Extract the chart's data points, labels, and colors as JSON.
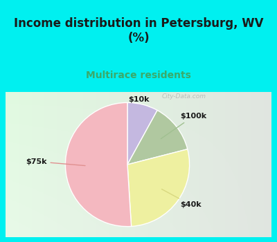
{
  "title": "Income distribution in Petersburg, WV\n(%)",
  "subtitle": "Multirace residents",
  "labels": [
    "$10k",
    "$100k",
    "$40k",
    "$75k"
  ],
  "sizes": [
    8,
    13,
    28,
    51
  ],
  "colors": [
    "#c4b8e0",
    "#b0c8a0",
    "#eef0a0",
    "#f4b8c0"
  ],
  "bg_color": "#00f0f0",
  "chart_bg_left": "#e8f5ee",
  "chart_bg_right": "#d0eae0",
  "title_color": "#1a1a1a",
  "subtitle_color": "#3aaa6a",
  "label_color": "#1a1a1a",
  "watermark": "City-Data.com",
  "startangle": 90,
  "wedge_edge_color": "white",
  "wedge_linewidth": 1.0
}
